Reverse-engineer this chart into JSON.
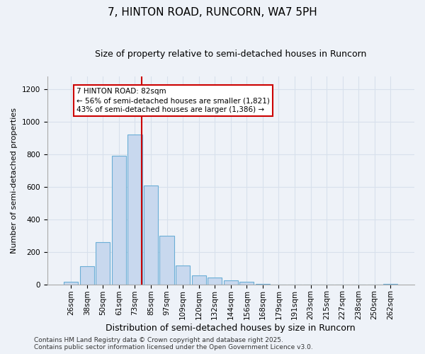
{
  "title_line1": "7, HINTON ROAD, RUNCORN, WA7 5PH",
  "title_line2": "Size of property relative to semi-detached houses in Runcorn",
  "xlabel": "Distribution of semi-detached houses by size in Runcorn",
  "ylabel": "Number of semi-detached properties",
  "categories": [
    "26sqm",
    "38sqm",
    "50sqm",
    "61sqm",
    "73sqm",
    "85sqm",
    "97sqm",
    "109sqm",
    "120sqm",
    "132sqm",
    "144sqm",
    "156sqm",
    "168sqm",
    "179sqm",
    "191sqm",
    "203sqm",
    "215sqm",
    "227sqm",
    "238sqm",
    "250sqm",
    "262sqm"
  ],
  "bar_values": [
    15,
    110,
    260,
    790,
    920,
    610,
    300,
    115,
    55,
    40,
    25,
    15,
    5,
    0,
    0,
    0,
    0,
    0,
    0,
    0,
    5
  ],
  "bar_color": "#c8d8ee",
  "bar_edge_color": "#6baed6",
  "vline_color": "#cc0000",
  "vline_x_index": 4.42,
  "annotation_text": "7 HINTON ROAD: 82sqm\n← 56% of semi-detached houses are smaller (1,821)\n43% of semi-detached houses are larger (1,386) →",
  "annotation_box_facecolor": "#ffffff",
  "annotation_box_edgecolor": "#cc0000",
  "ylim": [
    0,
    1280
  ],
  "yticks": [
    0,
    200,
    400,
    600,
    800,
    1000,
    1200
  ],
  "grid_color": "#d8e0ec",
  "bg_color": "#eef2f8",
  "footer_line1": "Contains HM Land Registry data © Crown copyright and database right 2025.",
  "footer_line2": "Contains public sector information licensed under the Open Government Licence v3.0.",
  "title1_fontsize": 11,
  "title2_fontsize": 9,
  "xlabel_fontsize": 9,
  "ylabel_fontsize": 8,
  "tick_fontsize": 7.5,
  "annotation_fontsize": 7.5,
  "footer_fontsize": 6.5
}
